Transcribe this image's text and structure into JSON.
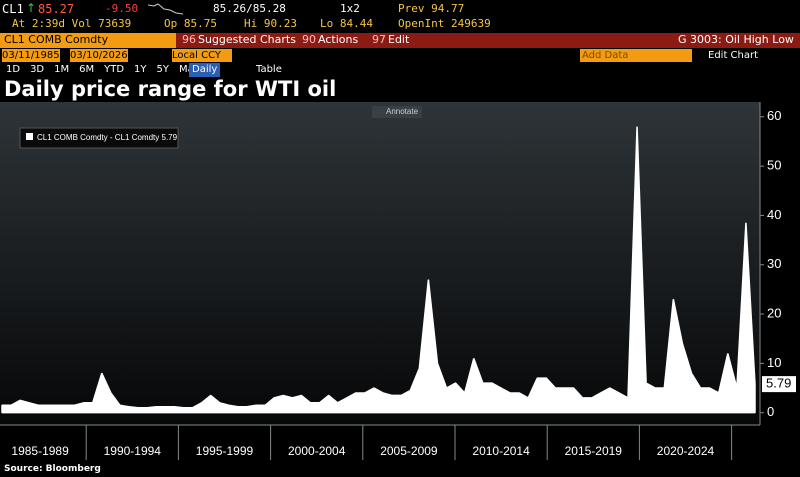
{
  "header": {
    "ticker": "CL1",
    "arrow": "↑",
    "last": "85.27",
    "change": "-9.50",
    "bid_ask": "85.26/85.28",
    "size": "1x2",
    "prev": "Prev 94.77",
    "time_vol": "At 2:39d Vol 73639",
    "open": "Op 85.75",
    "high": "Hi 90.23",
    "low": "Lo 84.44",
    "open_int": "OpenInt 249639"
  },
  "toolbar": {
    "security": "CL1 COMB Comdty",
    "menu1_num": "96",
    "menu1": "Suggested Charts",
    "menu2_num": "90",
    "menu2": "Actions",
    "menu3_num": "97",
    "menu3": "Edit",
    "chart_name": "G 3003: Oil High Low",
    "start_date": "03/11/1985",
    "end_date": "03/10/2026",
    "currency": "Local CCY",
    "add_data": "Add Data",
    "edit_chart": "Edit Chart",
    "ranges": [
      "1D",
      "3D",
      "1M",
      "6M",
      "YTD",
      "1Y",
      "5Y",
      "Max"
    ],
    "period": "Daily",
    "table": "Table",
    "annotate": "Annotate"
  },
  "chart_data": {
    "type": "area",
    "title": "Daily price range for WTI oil",
    "source": "Source: Bloomberg",
    "x_labels": [
      "1985-1989",
      "1990-1994",
      "1995-1999",
      "2000-2004",
      "2005-2009",
      "2010-2014",
      "2015-2019",
      "2020-2024"
    ],
    "series": [
      {
        "name": "CL1 COMB Comdty - CL1 Comdty",
        "color": "#ffffff",
        "values": [
          1.5,
          1.5,
          2.5,
          2,
          1.5,
          1.5,
          1.5,
          1.5,
          1.5,
          2,
          2,
          8,
          4,
          1.5,
          1.2,
          1,
          1,
          1.2,
          1.2,
          1.2,
          1,
          1,
          2,
          3.5,
          2,
          1.5,
          1.2,
          1.2,
          1.5,
          1.5,
          3,
          3.5,
          3,
          3.5,
          2,
          2,
          3.5,
          2,
          3,
          4,
          4,
          5,
          4,
          3.5,
          3.5,
          4.5,
          9,
          27,
          10,
          5,
          6,
          4,
          11,
          6,
          6,
          5,
          4,
          4,
          3,
          7,
          7,
          5,
          5,
          5,
          3,
          3,
          4,
          5,
          4,
          3,
          58,
          6,
          5,
          5,
          23,
          14,
          8,
          5,
          5,
          4,
          12,
          5,
          38.5,
          5.79
        ]
      }
    ],
    "ylim": [
      -2.5,
      63
    ],
    "yticks": [
      0,
      10,
      20,
      30,
      40,
      50,
      60
    ]
  }
}
